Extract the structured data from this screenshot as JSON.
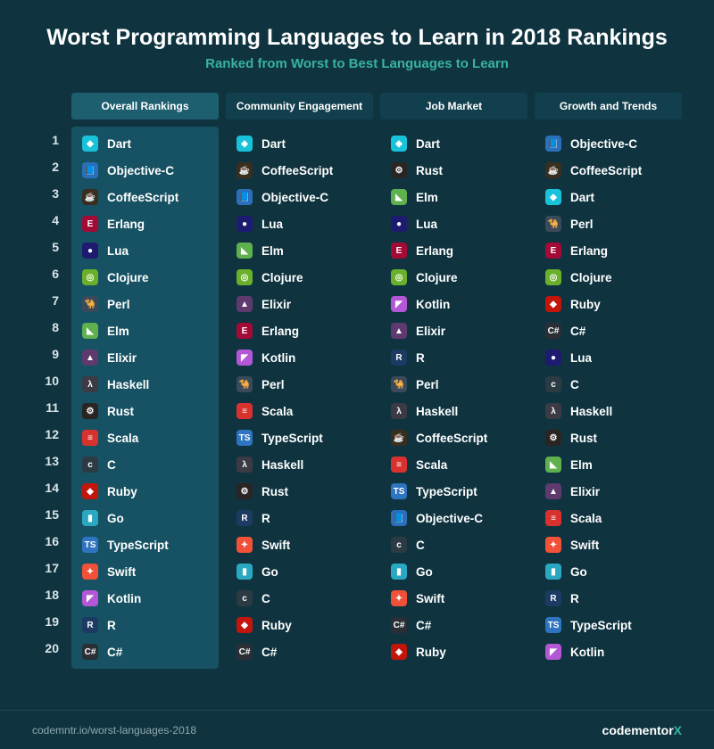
{
  "title": "Worst Programming Languages to Learn in 2018 Rankings",
  "subtitle": "Ranked from Worst to Best Languages to Learn",
  "footer_url": "codemntr.io/worst-languages-2018",
  "footer_brand": "codementor",
  "footer_brand_suffix": "X",
  "rank_count": 20,
  "icon_palette": {
    "Dart": {
      "bg": "#18c3d9",
      "glyph": "◆"
    },
    "Objective-C": {
      "bg": "#2b6fbb",
      "glyph": "📘"
    },
    "CoffeeScript": {
      "bg": "#3a2e1e",
      "glyph": "☕"
    },
    "Erlang": {
      "bg": "#a30a36",
      "glyph": "E"
    },
    "Lua": {
      "bg": "#1d1b6f",
      "glyph": "●"
    },
    "Clojure": {
      "bg": "#6ab02a",
      "glyph": "◎"
    },
    "Perl": {
      "bg": "#3a4a5a",
      "glyph": "🐪"
    },
    "Elm": {
      "bg": "#5fb04e",
      "glyph": "◣"
    },
    "Elixir": {
      "bg": "#5e3a6f",
      "glyph": "▲"
    },
    "Haskell": {
      "bg": "#3b3a45",
      "glyph": "λ"
    },
    "Rust": {
      "bg": "#2a2522",
      "glyph": "⚙"
    },
    "Scala": {
      "bg": "#d8322e",
      "glyph": "≡"
    },
    "C": {
      "bg": "#2c3a44",
      "glyph": "c"
    },
    "Ruby": {
      "bg": "#c2160d",
      "glyph": "◆"
    },
    "Go": {
      "bg": "#2aa8c1",
      "glyph": "▮"
    },
    "TypeScript": {
      "bg": "#2f74c0",
      "glyph": "TS"
    },
    "Swift": {
      "bg": "#f05138",
      "glyph": "✦"
    },
    "Kotlin": {
      "bg": "#b357d6",
      "glyph": "◤"
    },
    "R": {
      "bg": "#1c3a62",
      "glyph": "R"
    },
    "C#": {
      "bg": "#2a2f36",
      "glyph": "C#"
    }
  },
  "columns": [
    {
      "title": "Overall Rankings",
      "highlight": true,
      "items": [
        "Dart",
        "Objective-C",
        "CoffeeScript",
        "Erlang",
        "Lua",
        "Clojure",
        "Perl",
        "Elm",
        "Elixir",
        "Haskell",
        "Rust",
        "Scala",
        "C",
        "Ruby",
        "Go",
        "TypeScript",
        "Swift",
        "Kotlin",
        "R",
        "C#"
      ]
    },
    {
      "title": "Community Engagement",
      "highlight": false,
      "items": [
        "Dart",
        "CoffeeScript",
        "Objective-C",
        "Lua",
        "Elm",
        "Clojure",
        "Elixir",
        "Erlang",
        "Kotlin",
        "Perl",
        "Scala",
        "TypeScript",
        "Haskell",
        "Rust",
        "R",
        "Swift",
        "Go",
        "C",
        "Ruby",
        "C#"
      ]
    },
    {
      "title": "Job Market",
      "highlight": false,
      "items": [
        "Dart",
        "Rust",
        "Elm",
        "Lua",
        "Erlang",
        "Clojure",
        "Kotlin",
        "Elixir",
        "R",
        "Perl",
        "Haskell",
        "CoffeeScript",
        "Scala",
        "TypeScript",
        "Objective-C",
        "C",
        "Go",
        "Swift",
        "C#",
        "Ruby"
      ]
    },
    {
      "title": "Growth and Trends",
      "highlight": false,
      "items": [
        "Objective-C",
        "CoffeeScript",
        "Dart",
        "Perl",
        "Erlang",
        "Clojure",
        "Ruby",
        "C#",
        "Lua",
        "C",
        "Haskell",
        "Rust",
        "Elm",
        "Elixir",
        "Scala",
        "Swift",
        "Go",
        "R",
        "TypeScript",
        "Kotlin"
      ]
    }
  ]
}
